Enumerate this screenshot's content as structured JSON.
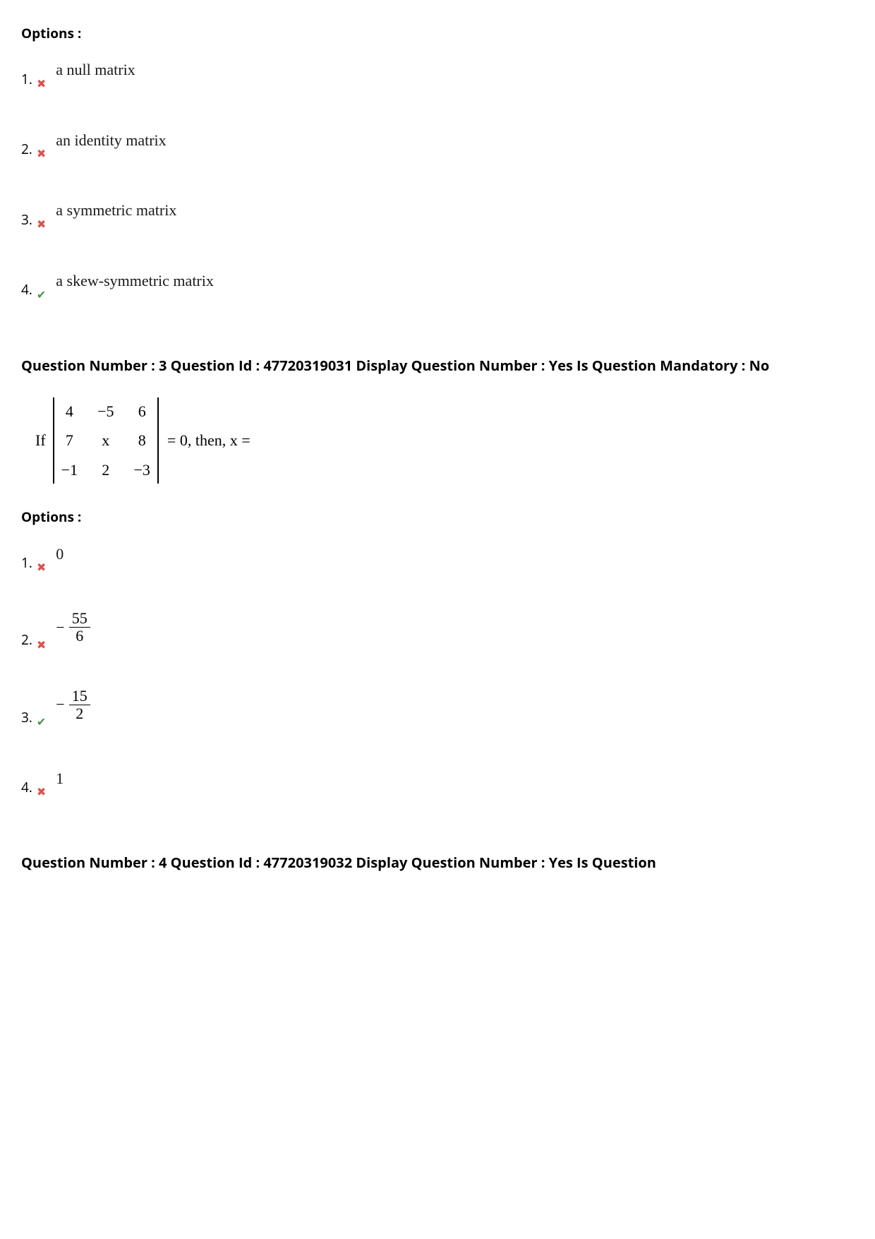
{
  "block1": {
    "options_label": "Options :",
    "options": [
      {
        "n": "1.",
        "correct": false,
        "text": "a null matrix"
      },
      {
        "n": "2.",
        "correct": false,
        "text": "an identity matrix"
      },
      {
        "n": "3.",
        "correct": false,
        "text": "a symmetric matrix"
      },
      {
        "n": "4.",
        "correct": true,
        "text": "a skew-symmetric matrix"
      }
    ]
  },
  "q3": {
    "header": "Question Number : 3 Question Id : 47720319031 Display Question Number : Yes Is Question Mandatory : No",
    "prefix": "If",
    "matrix": {
      "rows": [
        [
          "4",
          "−5",
          "6"
        ],
        [
          "7",
          "x",
          "8"
        ],
        [
          "−1",
          "2",
          "−3"
        ]
      ]
    },
    "suffix": "= 0, then, x =",
    "options_label": "Options :",
    "options": [
      {
        "n": "1.",
        "correct": false,
        "kind": "plain",
        "text": "0"
      },
      {
        "n": "2.",
        "correct": false,
        "kind": "negfrac",
        "num": "55",
        "den": "6"
      },
      {
        "n": "3.",
        "correct": true,
        "kind": "negfrac",
        "num": "15",
        "den": "2"
      },
      {
        "n": "4.",
        "correct": false,
        "kind": "plain",
        "text": "1"
      }
    ]
  },
  "q4": {
    "header": "Question Number : 4 Question Id : 47720319032 Display Question Number : Yes Is Question"
  },
  "marks": {
    "wrong": "✖",
    "right": "✔"
  },
  "colors": {
    "wrong": "#d9534f",
    "right": "#4a934a",
    "text": "#000000"
  }
}
